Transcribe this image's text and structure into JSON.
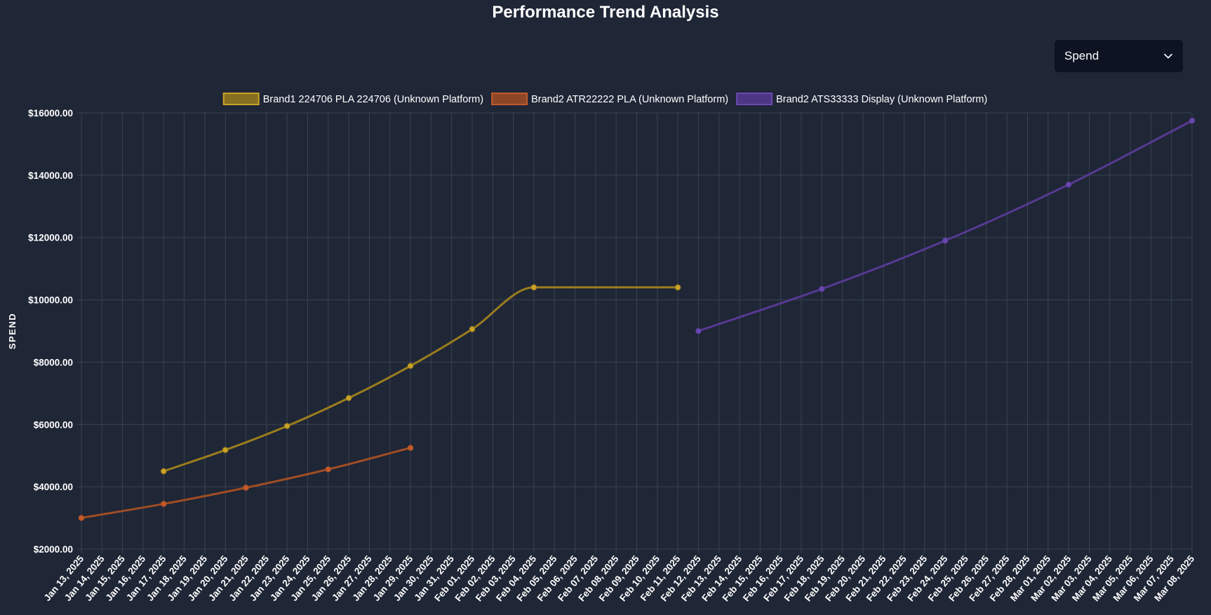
{
  "page": {
    "title": "Performance Trend Analysis"
  },
  "controls": {
    "metric_select": {
      "value": "Spend",
      "icon": "chevron-down-icon"
    }
  },
  "chart_data": {
    "type": "line",
    "title": "Performance Trend Analysis",
    "xlabel": "",
    "ylabel": "SPEND",
    "ylim": [
      2000,
      16000
    ],
    "y_ticks": [
      2000,
      4000,
      6000,
      8000,
      10000,
      12000,
      14000,
      16000
    ],
    "y_tick_labels": [
      "$2000.00",
      "$4000.00",
      "$6000.00",
      "$8000.00",
      "$10000.00",
      "$12000.00",
      "$14000.00",
      "$16000.00"
    ],
    "grid": true,
    "legend_position": "top",
    "categories": [
      "Jan 13, 2025",
      "Jan 14, 2025",
      "Jan 15, 2025",
      "Jan 16, 2025",
      "Jan 17, 2025",
      "Jan 18, 2025",
      "Jan 19, 2025",
      "Jan 20, 2025",
      "Jan 21, 2025",
      "Jan 22, 2025",
      "Jan 23, 2025",
      "Jan 24, 2025",
      "Jan 25, 2025",
      "Jan 26, 2025",
      "Jan 27, 2025",
      "Jan 28, 2025",
      "Jan 29, 2025",
      "Jan 30, 2025",
      "Jan 31, 2025",
      "Feb 01, 2025",
      "Feb 02, 2025",
      "Feb 03, 2025",
      "Feb 04, 2025",
      "Feb 05, 2025",
      "Feb 06, 2025",
      "Feb 07, 2025",
      "Feb 08, 2025",
      "Feb 09, 2025",
      "Feb 10, 2025",
      "Feb 11, 2025",
      "Feb 12, 2025",
      "Feb 13, 2025",
      "Feb 14, 2025",
      "Feb 15, 2025",
      "Feb 16, 2025",
      "Feb 17, 2025",
      "Feb 18, 2025",
      "Feb 19, 2025",
      "Feb 20, 2025",
      "Feb 21, 2025",
      "Feb 22, 2025",
      "Feb 23, 2025",
      "Feb 24, 2025",
      "Feb 25, 2025",
      "Feb 26, 2025",
      "Feb 27, 2025",
      "Feb 28, 2025",
      "Mar 01, 2025",
      "Mar 02, 2025",
      "Mar 03, 2025",
      "Mar 04, 2025",
      "Mar 05, 2025",
      "Mar 06, 2025",
      "Mar 07, 2025",
      "Mar 08, 2025"
    ],
    "series": [
      {
        "name": "Brand1 224706 PLA 224706 (Unknown Platform)",
        "color": "#9a7d1e",
        "point_color": "#c9a227",
        "points": [
          {
            "x": "Jan 17, 2025",
            "y": 4500
          },
          {
            "x": "Jan 20, 2025",
            "y": 5180
          },
          {
            "x": "Jan 23, 2025",
            "y": 5950
          },
          {
            "x": "Jan 26, 2025",
            "y": 6850
          },
          {
            "x": "Jan 29, 2025",
            "y": 7880
          },
          {
            "x": "Feb 01, 2025",
            "y": 9060
          },
          {
            "x": "Feb 04, 2025",
            "y": 10400
          },
          {
            "x": "Feb 11, 2025",
            "y": 10400
          }
        ]
      },
      {
        "name": "Brand2 ATR22222 PLA (Unknown Platform)",
        "color": "#a04d24",
        "point_color": "#c45a2a",
        "points": [
          {
            "x": "Jan 13, 2025",
            "y": 3000
          },
          {
            "x": "Jan 17, 2025",
            "y": 3450
          },
          {
            "x": "Jan 21, 2025",
            "y": 3970
          },
          {
            "x": "Jan 25, 2025",
            "y": 4560
          },
          {
            "x": "Jan 29, 2025",
            "y": 5250
          }
        ]
      },
      {
        "name": "Brand2 ATS33333 Display (Unknown Platform)",
        "color": "#563a92",
        "point_color": "#6a48b0",
        "points": [
          {
            "x": "Feb 12, 2025",
            "y": 9000
          },
          {
            "x": "Feb 18, 2025",
            "y": 10350
          },
          {
            "x": "Feb 24, 2025",
            "y": 11900
          },
          {
            "x": "Mar 02, 2025",
            "y": 13700
          },
          {
            "x": "Mar 08, 2025",
            "y": 15750
          }
        ]
      }
    ]
  }
}
